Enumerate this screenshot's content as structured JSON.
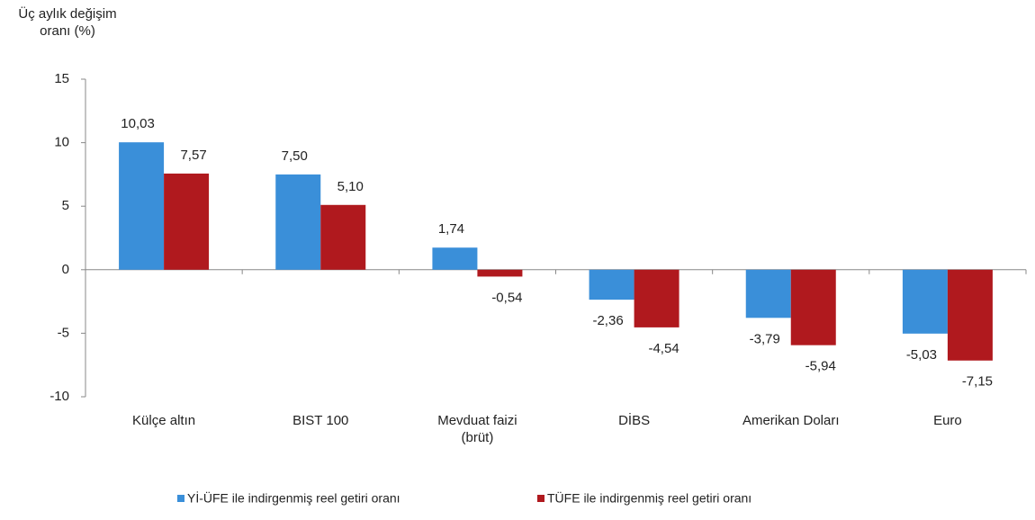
{
  "chart_data": {
    "type": "bar",
    "y_axis_label": "Üç aylık değişim\noranı (%)",
    "categories": [
      "Külçe altın",
      "BIST 100",
      "Mevduat faizi\n(brüt)",
      "DİBS",
      "Amerikan Doları",
      "Euro"
    ],
    "series": [
      {
        "name": "Yİ-ÜFE ile indirgenmiş reel getiri oranı",
        "color": "#3a8fd9",
        "values": [
          10.03,
          7.5,
          1.74,
          -2.36,
          -3.79,
          -5.03
        ],
        "value_labels": [
          "10,03",
          "7,50",
          "1,74",
          "-2,36",
          "-3,79",
          "-5,03"
        ]
      },
      {
        "name": "TÜFE ile indirgenmiş reel getiri oranı",
        "color": "#b0191e",
        "values": [
          7.57,
          5.1,
          -0.54,
          -4.54,
          -5.94,
          -7.15
        ],
        "value_labels": [
          "7,57",
          "5,10",
          "-0,54",
          "-4,54",
          "-5,94",
          "-7,15"
        ]
      }
    ],
    "ylim": [
      -10,
      15
    ],
    "yticks": [
      -10,
      -5,
      0,
      5,
      10,
      15
    ],
    "legend": "bottom"
  }
}
